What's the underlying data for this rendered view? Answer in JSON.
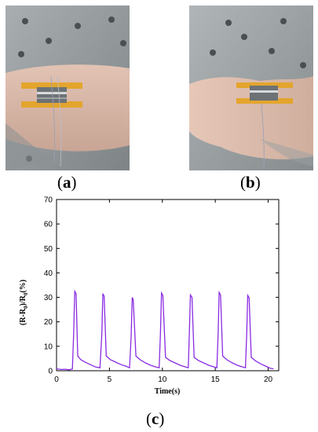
{
  "panels": [
    {
      "label_open": "(",
      "letter": "a",
      "label_close": ")"
    },
    {
      "label_open": "(",
      "letter": "b",
      "label_close": ")"
    },
    {
      "label_open": "(",
      "letter": "c",
      "label_close": ")"
    }
  ],
  "chart_data": {
    "type": "line",
    "title": "",
    "xlabel": "Time(s)",
    "ylabel": "(R-R0)/R0(%)",
    "ylabel_parts": {
      "open": "(R-R",
      "sub1": "0",
      "mid": ")/R",
      "sub2": "0",
      "close": "(%)"
    },
    "xlim": [
      0,
      21
    ],
    "ylim": [
      0,
      70
    ],
    "xticks": [
      0,
      5,
      10,
      15,
      20
    ],
    "yticks": [
      0,
      10,
      20,
      30,
      40,
      50,
      60,
      70
    ],
    "grid": false,
    "colors": {
      "line": "#8a2be2"
    },
    "series": [
      {
        "x": [
          0.0,
          0.4,
          0.8,
          1.2,
          1.5,
          1.62,
          1.72,
          1.85,
          2.0,
          2.3,
          2.7,
          3.2,
          3.7,
          4.1,
          4.28,
          4.38,
          4.5,
          4.7,
          5.1,
          5.6,
          6.1,
          6.6,
          6.9,
          7.05,
          7.15,
          7.25,
          7.5,
          7.9,
          8.4,
          8.9,
          9.4,
          9.7,
          9.82,
          9.92,
          10.05,
          10.3,
          10.7,
          11.2,
          11.7,
          12.2,
          12.45,
          12.55,
          12.65,
          12.8,
          13.0,
          13.4,
          13.9,
          14.4,
          14.9,
          15.15,
          15.27,
          15.37,
          15.5,
          15.7,
          16.1,
          16.6,
          17.1,
          17.6,
          17.85,
          17.97,
          18.07,
          18.2,
          18.4,
          18.8,
          19.3,
          19.8,
          20.2,
          20.5
        ],
        "y": [
          0.8,
          0.5,
          0.6,
          0.4,
          0.7,
          15,
          32.5,
          31.5,
          6,
          4.5,
          3.5,
          2.5,
          1.5,
          1.2,
          15,
          31.5,
          30.5,
          6,
          4.5,
          3.5,
          2.5,
          1.8,
          1.2,
          14,
          30,
          29,
          6,
          4.5,
          3.2,
          2.2,
          1.5,
          1.2,
          15,
          31.8,
          30.8,
          5.5,
          4.2,
          3.2,
          2.2,
          1.5,
          1.2,
          15,
          31,
          30,
          5.5,
          4.2,
          3.2,
          2.2,
          1.5,
          1.2,
          15,
          32,
          31,
          6,
          4.5,
          3.2,
          2.2,
          1.5,
          1.2,
          15,
          30.8,
          29.8,
          5.5,
          4.0,
          2.8,
          1.8,
          1.0,
          0.8
        ]
      }
    ]
  }
}
